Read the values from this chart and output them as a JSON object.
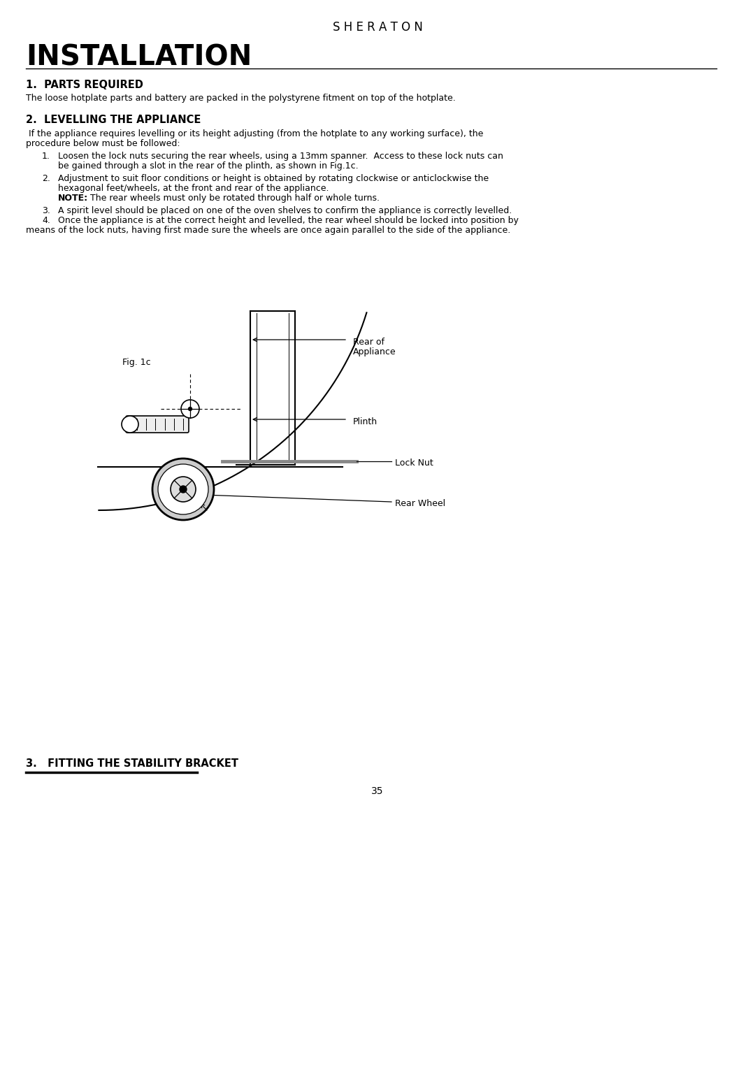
{
  "bg_color": "#ffffff",
  "header_text": "S H E R A T O N",
  "title_text": "INSTALLATION",
  "section1_header": "1.  PARTS REQUIRED",
  "section1_body": "The loose hotplate parts and battery are packed in the polystyrene fitment on top of the hotplate.",
  "section2_header": "2.  LEVELLING THE APPLIANCE",
  "intro_line1": " If the appliance requires levelling or its height adjusting (from the hotplate to any working surface), the",
  "intro_line2": "procedure below must be followed:",
  "item1_line1": "Loosen the lock nuts securing the rear wheels, using a 13mm spanner.  Access to these lock nuts can",
  "item1_line2": "be gained through a slot in the rear of the plinth, as shown in Fig.1c.",
  "item2_line1": "Adjustment to suit floor conditions or height is obtained by rotating clockwise or anticlockwise the",
  "item2_line2": "hexagonal feet/wheels, at the front and rear of the appliance.",
  "item2_note_bold": "NOTE:",
  "item2_note_rest": "  The rear wheels must only be rotated through half or whole turns.",
  "item3_line": "A spirit level should be placed on one of the oven shelves to confirm the appliance is correctly levelled.",
  "item4_line1": "Once the appliance is at the correct height and levelled, the rear wheel should be locked into position by",
  "item4_line2": "means of the lock nuts, having first made sure the wheels are once again parallel to the side of the appliance.",
  "fig_label": "Fig. 1c",
  "label_rear_line1": "Rear of",
  "label_rear_line2": "Appliance",
  "label_plinth": "Plinth",
  "label_locknut": "Lock Nut",
  "label_rearwheel": "Rear Wheel",
  "section3_header": "3.   FITTING THE STABILITY BRACKET",
  "page_number": "35"
}
